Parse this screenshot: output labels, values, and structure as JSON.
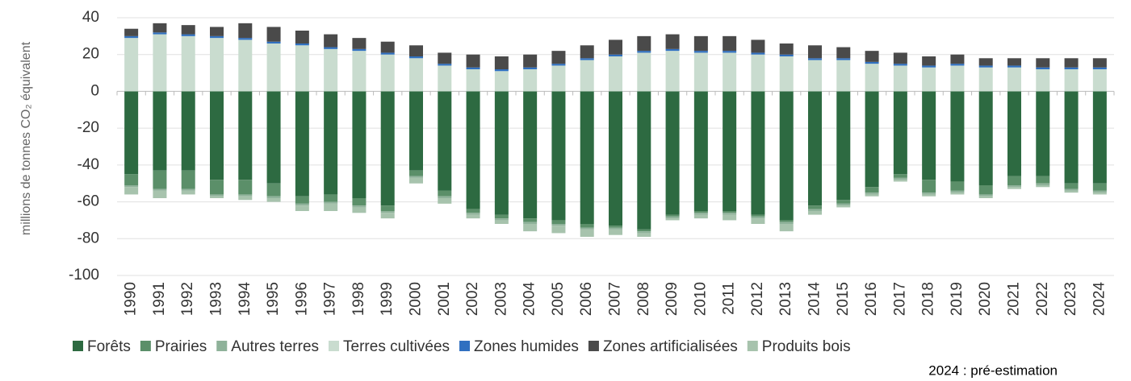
{
  "chart_data": {
    "type": "stacked_bar",
    "ylabel": "millions de tonnes CO₂ équivalent",
    "footnote": "2024 : pré-estimation",
    "categories": [
      "1990",
      "1991",
      "1992",
      "1993",
      "1994",
      "1995",
      "1996",
      "1997",
      "1998",
      "1999",
      "2000",
      "2001",
      "2002",
      "2003",
      "2004",
      "2005",
      "2006",
      "2007",
      "2008",
      "2009",
      "2010",
      "2011",
      "2012",
      "2013",
      "2014",
      "2015",
      "2016",
      "2017",
      "2018",
      "2019",
      "2020",
      "2021",
      "2022",
      "2023",
      "2024"
    ],
    "ylim": [
      -100,
      40
    ],
    "yticks": [
      -100,
      -80,
      -60,
      -40,
      -20,
      0,
      20,
      40
    ],
    "legend": "bottom",
    "series": [
      {
        "name": "Forêts",
        "color": "#2d6a41",
        "values": [
          -45,
          -43,
          -43,
          -48,
          -48,
          -50,
          -57,
          -56,
          -58,
          -62,
          -43,
          -54,
          -64,
          -67,
          -69,
          -70,
          -72,
          -73,
          -75,
          -67,
          -65,
          -65,
          -67,
          -70,
          -62,
          -59,
          -52,
          -45,
          -48,
          -49,
          -51,
          -46,
          -46,
          -50,
          -50
        ]
      },
      {
        "name": "Prairies",
        "color": "#5b8f69",
        "values": [
          -6,
          -10,
          -10,
          -8,
          -8,
          -7,
          -4,
          -4,
          -4,
          -3,
          -3,
          -3,
          -2,
          -2,
          -2,
          -2,
          -2,
          -1,
          -1,
          -1,
          -1,
          -1,
          -1,
          -1,
          -2,
          -2,
          -3,
          -2,
          -7,
          -5,
          -5,
          -5,
          -4,
          -3,
          -4
        ]
      },
      {
        "name": "Autres terres",
        "color": "#8fb29a",
        "values": [
          -1,
          -1,
          -1,
          -1,
          -1,
          -1,
          -1,
          -1,
          -1,
          -1,
          -1,
          -1,
          -1,
          -1,
          -1,
          -1,
          -1,
          -1,
          -1,
          -1,
          -1,
          -1,
          -1,
          -1,
          -1,
          -1,
          -1,
          -1,
          -1,
          -1,
          -1,
          -1,
          -1,
          -1,
          -1
        ]
      },
      {
        "name": "Terres cultivées",
        "color": "#c9dccf",
        "values": [
          29,
          31,
          30,
          29,
          28,
          26,
          25,
          23,
          22,
          20,
          18,
          14,
          12,
          11,
          12,
          14,
          17,
          19,
          21,
          22,
          21,
          21,
          20,
          19,
          17,
          17,
          15,
          14,
          13,
          14,
          13,
          13,
          12,
          12,
          12
        ]
      },
      {
        "name": "Zones humides",
        "color": "#3070c0",
        "values": [
          1,
          1,
          1,
          1,
          1,
          1,
          1,
          1,
          1,
          1,
          1,
          1,
          1,
          1,
          1,
          1,
          1,
          1,
          1,
          1,
          1,
          1,
          1,
          1,
          1,
          1,
          1,
          1,
          1,
          1,
          1,
          1,
          1,
          1,
          1
        ]
      },
      {
        "name": "Zones artificialisées",
        "color": "#4a4a4a",
        "values": [
          4,
          5,
          5,
          5,
          8,
          8,
          7,
          7,
          6,
          6,
          6,
          6,
          7,
          7,
          7,
          7,
          7,
          8,
          8,
          8,
          8,
          8,
          7,
          6,
          7,
          6,
          6,
          6,
          5,
          5,
          4,
          4,
          5,
          5,
          5
        ]
      },
      {
        "name": "Produits bois",
        "color": "#a7c3ad",
        "values": [
          -4,
          -4,
          -2,
          -1,
          -2,
          -2,
          -3,
          -4,
          -3,
          -3,
          -3,
          -3,
          -2,
          -2,
          -4,
          -4,
          -4,
          -3,
          -2,
          -1,
          -2,
          -3,
          -3,
          -4,
          -2,
          -1,
          -1,
          -1,
          -1,
          -1,
          -1,
          -1,
          -1,
          -1,
          -1
        ]
      }
    ]
  }
}
